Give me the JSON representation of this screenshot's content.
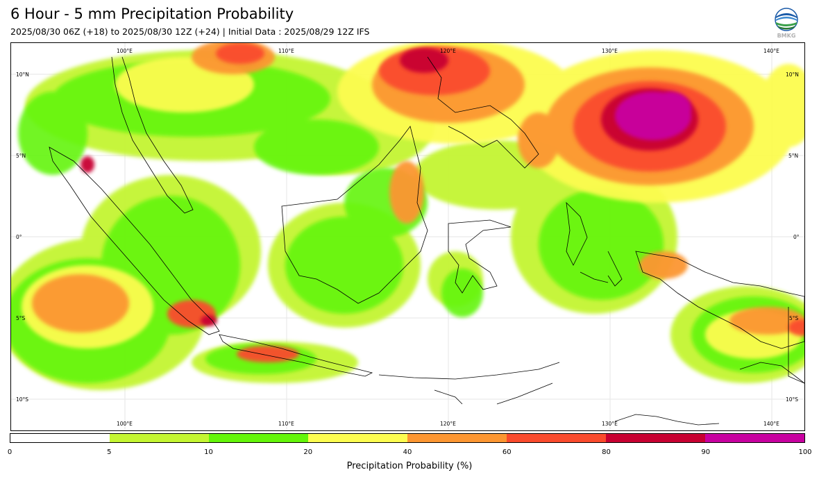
{
  "header": {
    "title": "6 Hour - 5 mm Precipitation Probability",
    "subtitle": "2025/08/30 06Z (+18) to 2025/08/30 12Z (+24) | Initial Data : 2025/08/29 12Z IFS"
  },
  "logo": {
    "icon": "bmkg-logo",
    "text": "BMKG"
  },
  "map": {
    "lon_labels": [
      "100°E",
      "110°E",
      "120°E",
      "130°E",
      "140°E"
    ],
    "lat_labels": [
      "10°N",
      "5°N",
      "0°",
      "5°S",
      "10°S"
    ],
    "region": "Indonesia"
  },
  "colorbar": {
    "ticks": [
      "0",
      "5",
      "10",
      "20",
      "40",
      "60",
      "80",
      "90",
      "100"
    ],
    "colors": [
      "#ffffff",
      "#c4f532",
      "#64f50a",
      "#fcfc50",
      "#fc9632",
      "#fa4b2d",
      "#c80032",
      "#c800a0"
    ],
    "label": "Precipitation Probability (%)"
  }
}
